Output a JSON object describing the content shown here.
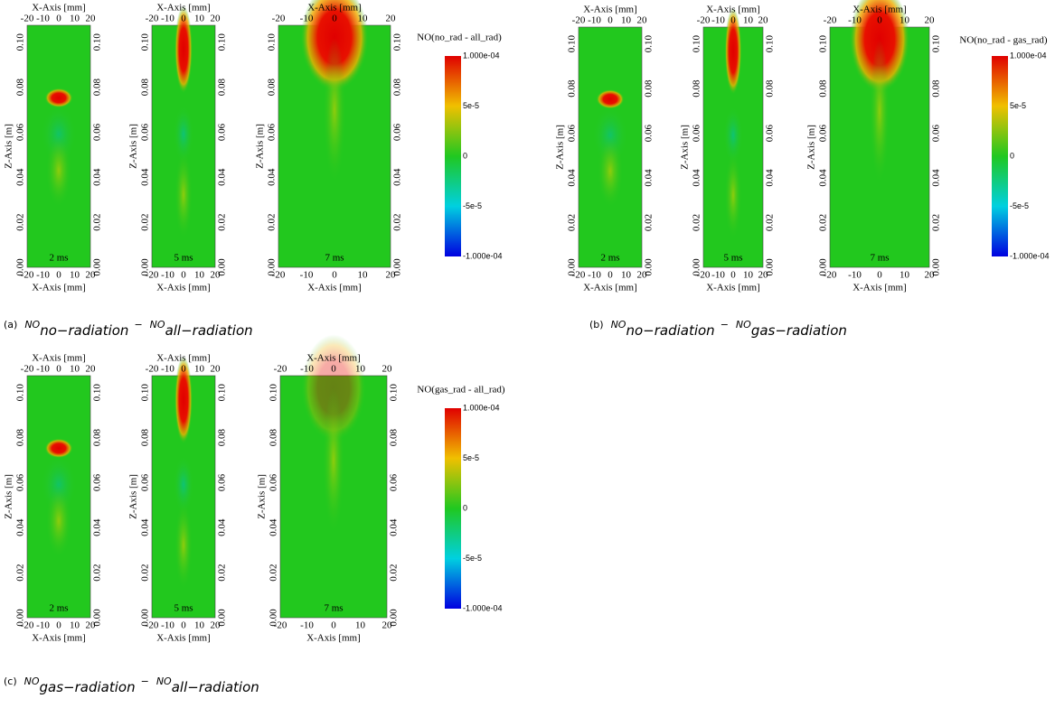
{
  "axes": {
    "x_label": "X-Axis [mm]",
    "z_label": "Z-Axis [m]",
    "x_ticks": [
      "-20",
      "-10",
      "0",
      "10",
      "20"
    ],
    "z_ticks": [
      "0.00",
      "0.02",
      "0.04",
      "0.06",
      "0.08",
      "0.10"
    ]
  },
  "panels": [
    {
      "caption": {
        "label": "(a)",
        "term1": "NO",
        "sub1": "no−radiation",
        "minus": "−",
        "term2": "NO",
        "sub2": "all−radiation"
      },
      "colorbar": {
        "title": "NO(no_rad - all_rad)",
        "labels": [
          "1.000e-04",
          "5e-5",
          "0",
          "-5e-5",
          "-1.000e-04"
        ]
      },
      "plots": [
        {
          "time": "2 ms"
        },
        {
          "time": "5 ms"
        },
        {
          "time": "7 ms"
        }
      ]
    },
    {
      "caption": {
        "label": "(b)",
        "term1": "NO",
        "sub1": "no−radiation",
        "minus": "−",
        "term2": "NO",
        "sub2": "gas−radiation"
      },
      "colorbar": {
        "title": "NO(no_rad - gas_rad)",
        "labels": [
          "1.000e-04",
          "5e-5",
          "0",
          "-5e-5",
          "-1.000e-04"
        ]
      },
      "plots": [
        {
          "time": "2 ms"
        },
        {
          "time": "5 ms"
        },
        {
          "time": "7 ms"
        }
      ]
    },
    {
      "caption": {
        "label": "(c)",
        "term1": "NO",
        "sub1": "gas−radiation",
        "minus": "−",
        "term2": "NO",
        "sub2": "all−radiation"
      },
      "colorbar": {
        "title": "NO(gas_rad - all_rad)",
        "labels": [
          "1.000e-04",
          "5e-5",
          "0",
          "-5e-5",
          "-1.000e-04"
        ]
      },
      "plots": [
        {
          "time": "2 ms"
        },
        {
          "time": "5 ms"
        },
        {
          "time": "7 ms"
        }
      ]
    }
  ]
}
